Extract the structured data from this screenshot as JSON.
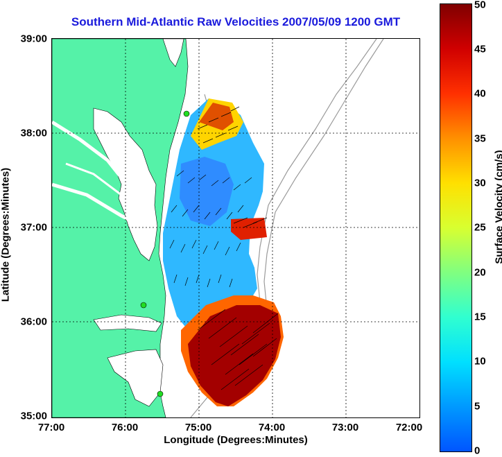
{
  "title": "Southern Mid-Atlantic Raw Velocities 2007/05/09 1200 GMT",
  "x_axis": {
    "label": "Longitude (Degrees:Minutes)",
    "ticks": [
      "77:00",
      "76:00",
      "75:00",
      "74:00",
      "73:00",
      "72:00"
    ]
  },
  "y_axis": {
    "label": "Latitude (Degrees:Minutes)",
    "ticks": [
      "39:00",
      "38:00",
      "37:00",
      "36:00",
      "35:00"
    ]
  },
  "colorbar": {
    "label": "Surface Velocity (cm/s)",
    "ticks": [
      "50",
      "45",
      "40",
      "35",
      "30",
      "25",
      "20",
      "15",
      "10",
      "5",
      "0"
    ],
    "range": [
      0,
      50
    ]
  },
  "colors": {
    "land": "#55f2a8",
    "title": "#1a1adc",
    "grid": "#000000"
  }
}
